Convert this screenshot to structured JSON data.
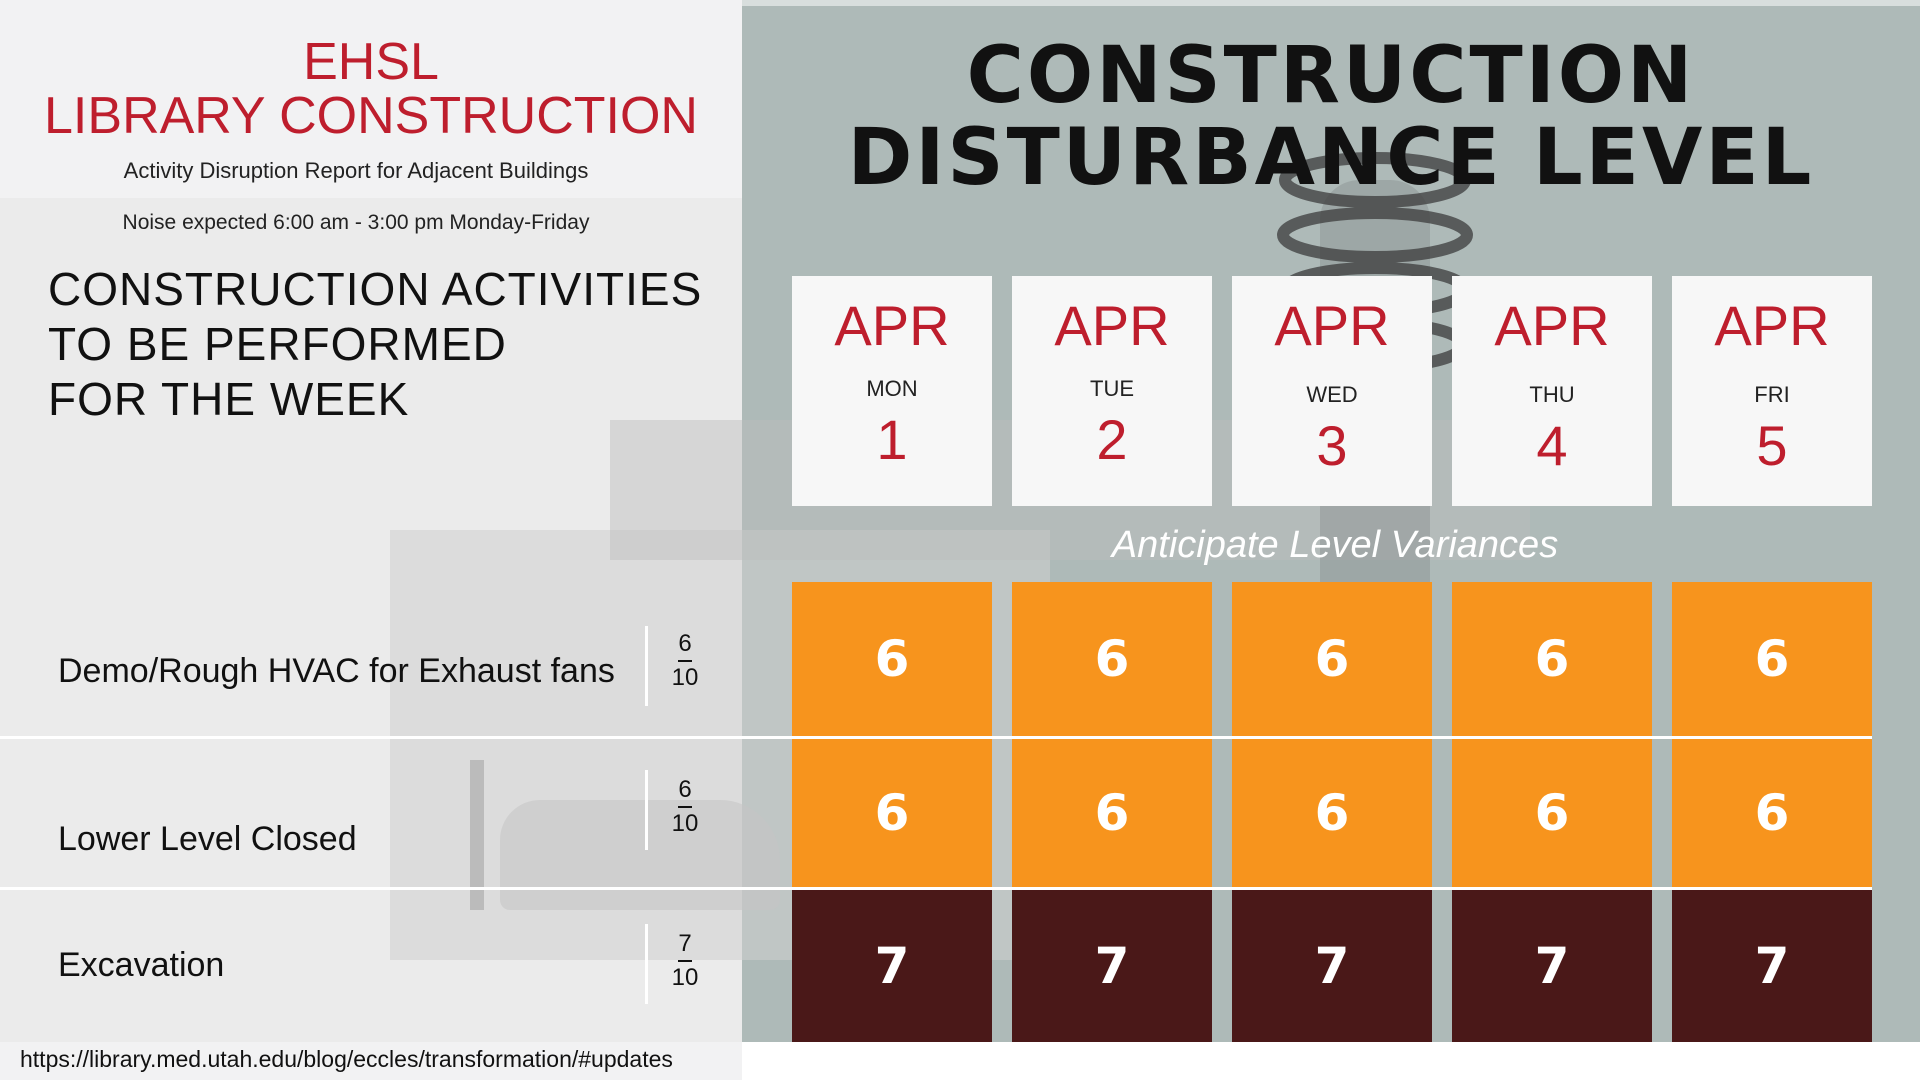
{
  "header": {
    "brand_line1": "EHSL",
    "brand_line2": "LIBRARY CONSTRUCTION",
    "subtitle": "Activity Disruption Report for Adjacent Buildings",
    "noise": "Noise expected 6:00 am - 3:00 pm Monday-Friday",
    "activities_heading": [
      "CONSTRUCTION ACTIVITIES",
      "TO BE PERFORMED",
      "FOR THE WEEK"
    ]
  },
  "main_title": [
    "CONSTRUCTION",
    "DISTURBANCE LEVEL"
  ],
  "days": [
    {
      "month": "APR",
      "weekday": "MON",
      "date": "1"
    },
    {
      "month": "APR",
      "weekday": "TUE",
      "date": "2"
    },
    {
      "month": "APR",
      "weekday": "WED",
      "date": "3"
    },
    {
      "month": "APR",
      "weekday": "THU",
      "date": "4"
    },
    {
      "month": "APR",
      "weekday": "FRI",
      "date": "5"
    }
  ],
  "variance_note": "Anticipate Level Variances",
  "activities": [
    {
      "name": "Demo/Rough HVAC for Exhaust fans",
      "level": "6",
      "scale": "10",
      "daily": [
        "6",
        "6",
        "6",
        "6",
        "6"
      ]
    },
    {
      "name": "Lower Level Closed",
      "level": "6",
      "scale": "10",
      "daily": [
        "6",
        "6",
        "6",
        "6",
        "6"
      ]
    },
    {
      "name": "Excavation",
      "level": "7",
      "scale": "10",
      "daily": [
        "7",
        "7",
        "7",
        "7",
        "7"
      ]
    }
  ],
  "footer_url": "https://library.med.utah.edu/blog/eccles/transformation/#updates",
  "colors": {
    "brand_red": "#be1e2d",
    "level_6": "#f7941d",
    "level_7": "#4a1818",
    "panel_bg": "#aebab8"
  }
}
